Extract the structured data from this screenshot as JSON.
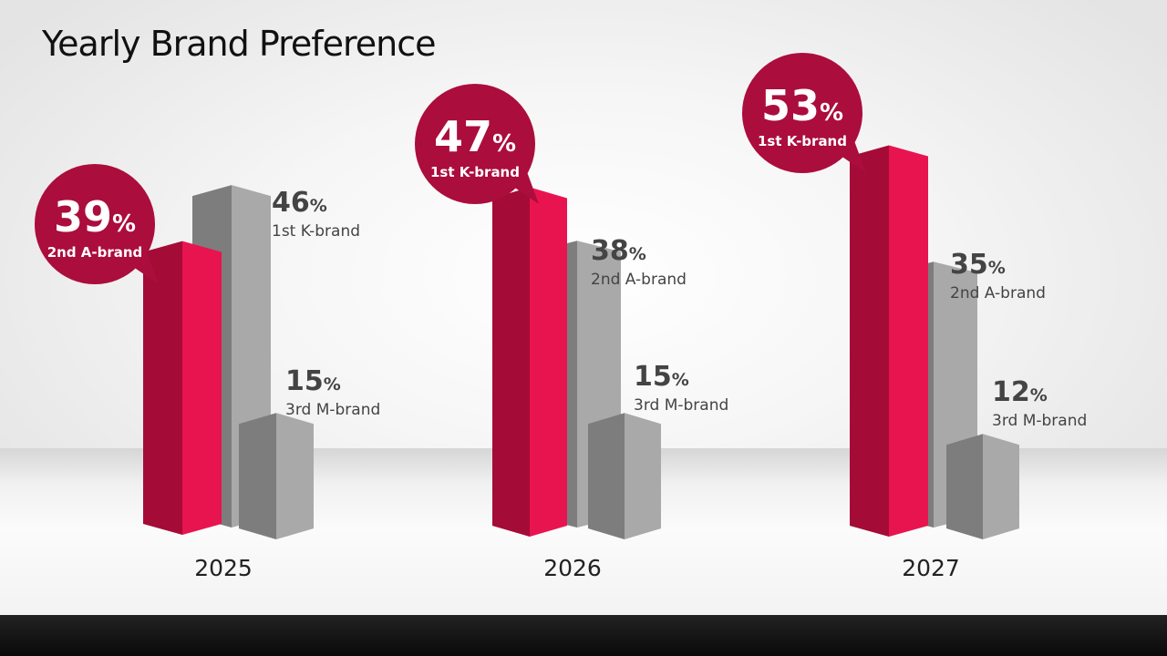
{
  "page": {
    "title": "Yearly Brand Preference"
  },
  "colors": {
    "highlight": "#e8144f",
    "highlight_dark": "#a50b37",
    "bubble": "#ab0d3d",
    "gray": "#a9a9a9",
    "gray_dark": "#7d7d7d",
    "label_text": "#444444"
  },
  "chart_data": {
    "type": "bar",
    "title": "Yearly Brand Preference",
    "unit": "%",
    "categories": [
      "2025",
      "2026",
      "2027"
    ],
    "groups": [
      {
        "year": "2025",
        "bars": [
          {
            "value": 39,
            "label": "2nd A-brand",
            "highlight": true
          },
          {
            "value": 46,
            "label": "1st K-brand",
            "highlight": false
          },
          {
            "value": 15,
            "label": "3rd M-brand",
            "highlight": false
          }
        ]
      },
      {
        "year": "2026",
        "bars": [
          {
            "value": 47,
            "label": "1st K-brand",
            "highlight": true
          },
          {
            "value": 38,
            "label": "2nd A-brand",
            "highlight": false
          },
          {
            "value": 15,
            "label": "3rd M-brand",
            "highlight": false
          }
        ]
      },
      {
        "year": "2027",
        "bars": [
          {
            "value": 53,
            "label": "1st K-brand",
            "highlight": true
          },
          {
            "value": 35,
            "label": "2nd A-brand",
            "highlight": false
          },
          {
            "value": 12,
            "label": "3rd M-brand",
            "highlight": false
          }
        ]
      }
    ]
  }
}
